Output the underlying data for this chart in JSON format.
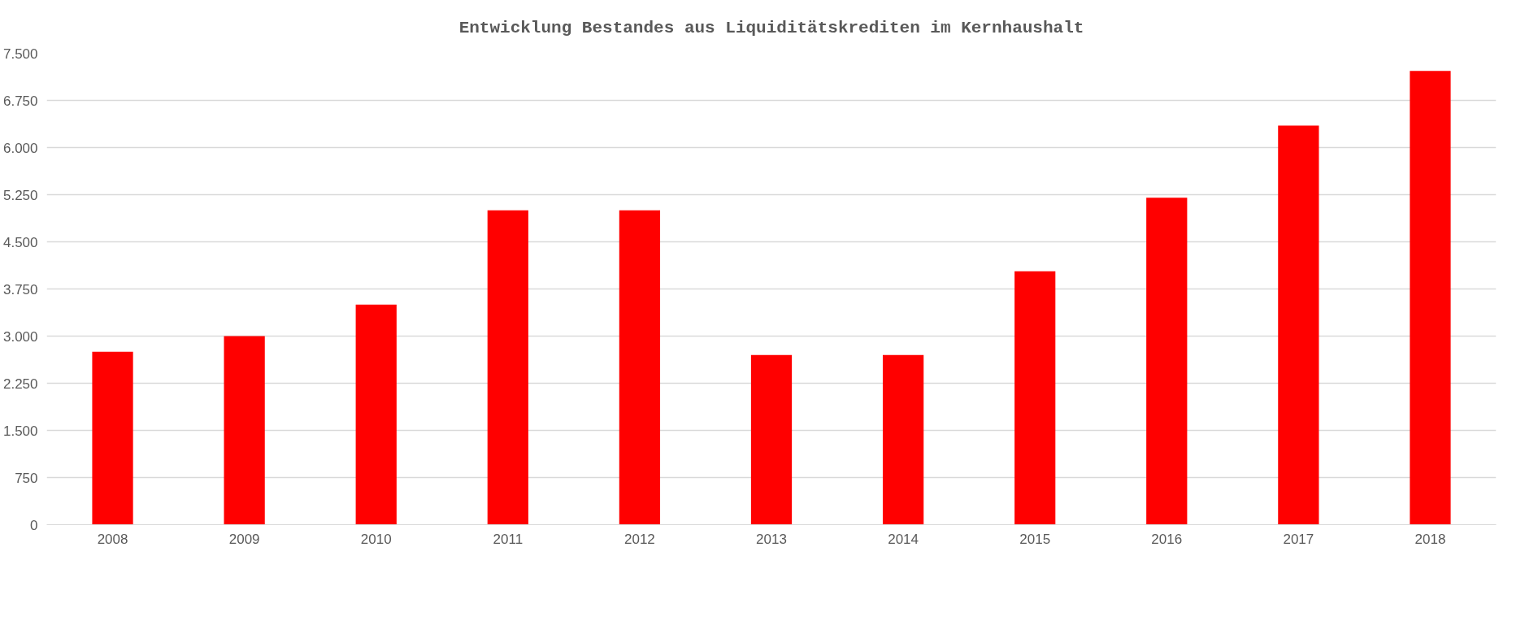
{
  "chart_data": {
    "type": "bar",
    "title": "Entwicklung Bestandes aus Liquiditätskrediten im Kernhaushalt",
    "categories": [
      "2008",
      "2009",
      "2010",
      "2011",
      "2012",
      "2013",
      "2014",
      "2015",
      "2016",
      "2017",
      "2018"
    ],
    "values": [
      2750,
      3000,
      3500,
      5000,
      5000,
      2700,
      2700,
      4030,
      5200,
      6350,
      7220
    ],
    "color": "#ff0000",
    "ylim": [
      0,
      7500
    ],
    "yticks": [
      {
        "value": 0,
        "label": "0"
      },
      {
        "value": 750,
        "label": "750"
      },
      {
        "value": 1500,
        "label": "1.500"
      },
      {
        "value": 2250,
        "label": "2.250"
      },
      {
        "value": 3000,
        "label": "3.000"
      },
      {
        "value": 3750,
        "label": "3.750"
      },
      {
        "value": 4500,
        "label": "4.500"
      },
      {
        "value": 5250,
        "label": "5.250"
      },
      {
        "value": 6000,
        "label": "6.000"
      },
      {
        "value": 6750,
        "label": "6.750"
      },
      {
        "value": 7500,
        "label": "7.500"
      }
    ],
    "grid": "y"
  }
}
